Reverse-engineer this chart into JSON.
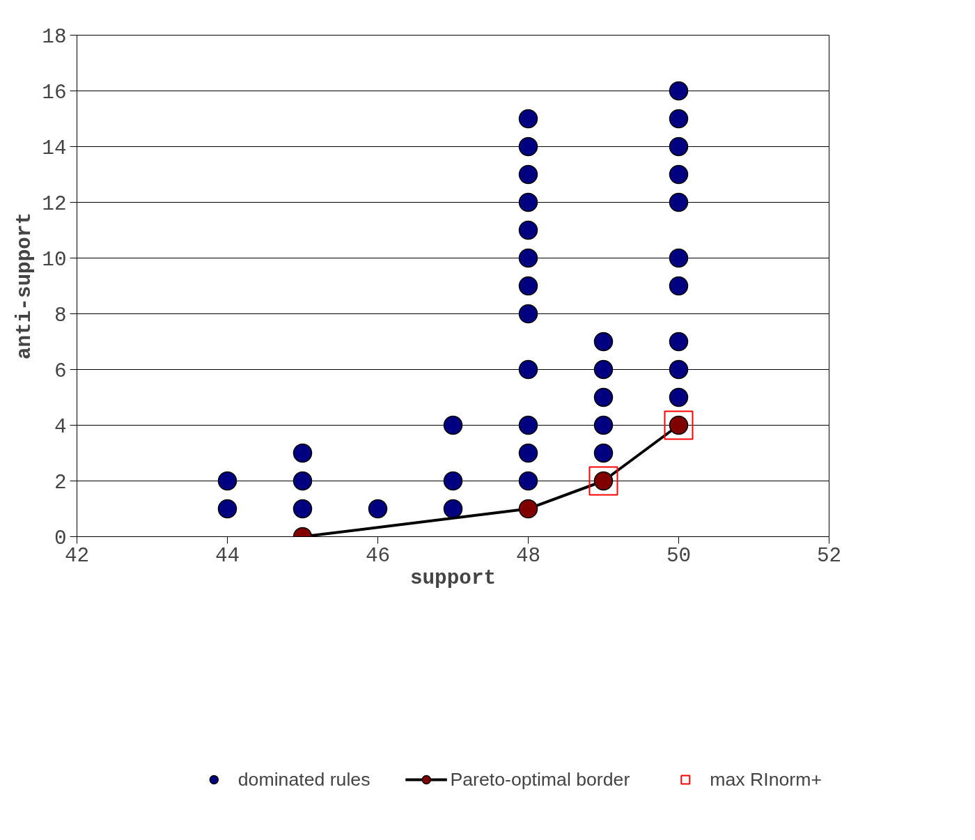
{
  "chart_data": {
    "type": "scatter",
    "xlabel": "support",
    "ylabel": "anti-support",
    "xlim": [
      42,
      52
    ],
    "xticks": [
      42,
      44,
      46,
      48,
      50,
      52
    ],
    "ylim": [
      0,
      18
    ],
    "yticks": [
      0,
      2,
      4,
      6,
      8,
      10,
      12,
      14,
      16,
      18
    ],
    "grid": "y",
    "legend": "bottom",
    "marker": "circle",
    "series": [
      {
        "name": "dominated rules",
        "color": "#000080",
        "x": [
          44,
          44,
          45,
          45,
          45,
          46,
          47,
          47,
          47,
          48,
          48,
          48,
          48,
          48,
          48,
          48,
          48,
          48,
          48,
          48,
          48,
          49,
          49,
          49,
          49,
          49,
          50,
          50,
          50,
          50,
          50,
          50,
          50,
          50,
          50,
          50
        ],
        "values": [
          1,
          2,
          1,
          2,
          3,
          1,
          1,
          2,
          4,
          2,
          3,
          4,
          6,
          8,
          9,
          10,
          11,
          12,
          13,
          14,
          15,
          3,
          4,
          5,
          6,
          7,
          5,
          6,
          7,
          9,
          10,
          12,
          13,
          14,
          15,
          16
        ]
      },
      {
        "name": "Pareto-optimal border",
        "type": "line",
        "marker": "circle",
        "line_style": "solid",
        "color": "#000000",
        "colors": [
          "#800000",
          "#800000",
          "#800000",
          "#800000"
        ],
        "x": [
          45,
          48,
          49,
          50
        ],
        "values": [
          0,
          1,
          2,
          4
        ]
      },
      {
        "name": "max RInorm+",
        "marker": "square",
        "color": "#ff0000",
        "x": [
          49,
          50
        ],
        "values": [
          2,
          4
        ]
      }
    ]
  }
}
